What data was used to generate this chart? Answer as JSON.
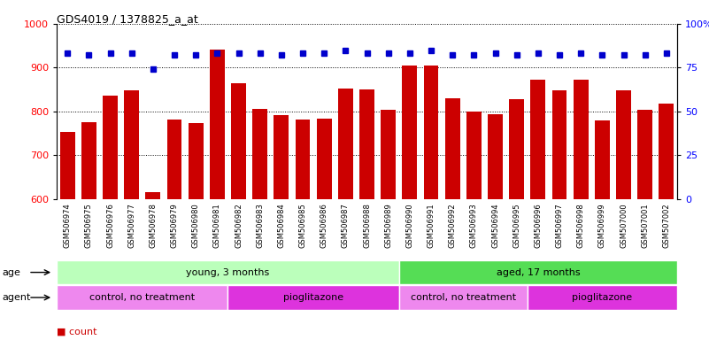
{
  "title": "GDS4019 / 1378825_a_at",
  "samples": [
    "GSM506974",
    "GSM506975",
    "GSM506976",
    "GSM506977",
    "GSM506978",
    "GSM506979",
    "GSM506980",
    "GSM506981",
    "GSM506982",
    "GSM506983",
    "GSM506984",
    "GSM506985",
    "GSM506986",
    "GSM506987",
    "GSM506988",
    "GSM506989",
    "GSM506990",
    "GSM506991",
    "GSM506992",
    "GSM506993",
    "GSM506994",
    "GSM506995",
    "GSM506996",
    "GSM506997",
    "GSM506998",
    "GSM506999",
    "GSM507000",
    "GSM507001",
    "GSM507002"
  ],
  "counts": [
    752,
    775,
    835,
    848,
    615,
    782,
    773,
    942,
    865,
    805,
    792,
    782,
    783,
    852,
    850,
    803,
    905,
    905,
    830,
    800,
    793,
    828,
    873,
    848,
    872,
    780,
    848,
    803,
    817
  ],
  "percentiles": [
    83,
    82,
    83,
    83,
    74,
    82,
    82,
    83,
    83,
    83,
    82,
    83,
    83,
    85,
    83,
    83,
    83,
    85,
    82,
    82,
    83,
    82,
    83,
    82,
    83,
    82,
    82,
    82,
    83
  ],
  "bar_color": "#cc0000",
  "dot_color": "#0000cc",
  "ylim_left": [
    600,
    1000
  ],
  "ylim_right": [
    0,
    100
  ],
  "yticks_left": [
    600,
    700,
    800,
    900,
    1000
  ],
  "yticks_right": [
    0,
    25,
    50,
    75,
    100
  ],
  "ytick_right_labels": [
    "0",
    "25",
    "50",
    "75",
    "100%"
  ],
  "age_groups": [
    {
      "label": "young, 3 months",
      "start": 0,
      "end": 16,
      "color": "#bbffbb"
    },
    {
      "label": "aged, 17 months",
      "start": 16,
      "end": 29,
      "color": "#55dd55"
    }
  ],
  "agent_groups": [
    {
      "label": "control, no treatment",
      "start": 0,
      "end": 8,
      "color": "#ee88ee"
    },
    {
      "label": "pioglitazone",
      "start": 8,
      "end": 16,
      "color": "#dd33dd"
    },
    {
      "label": "control, no treatment",
      "start": 16,
      "end": 22,
      "color": "#ee88ee"
    },
    {
      "label": "pioglitazone",
      "start": 22,
      "end": 29,
      "color": "#dd33dd"
    }
  ],
  "legend_count_color": "#cc0000",
  "legend_pct_color": "#0000cc",
  "background_color": "#ffffff",
  "plot_bg_color": "#ffffff",
  "grid_color": "#000000",
  "tick_area_bg": "#dddddd"
}
